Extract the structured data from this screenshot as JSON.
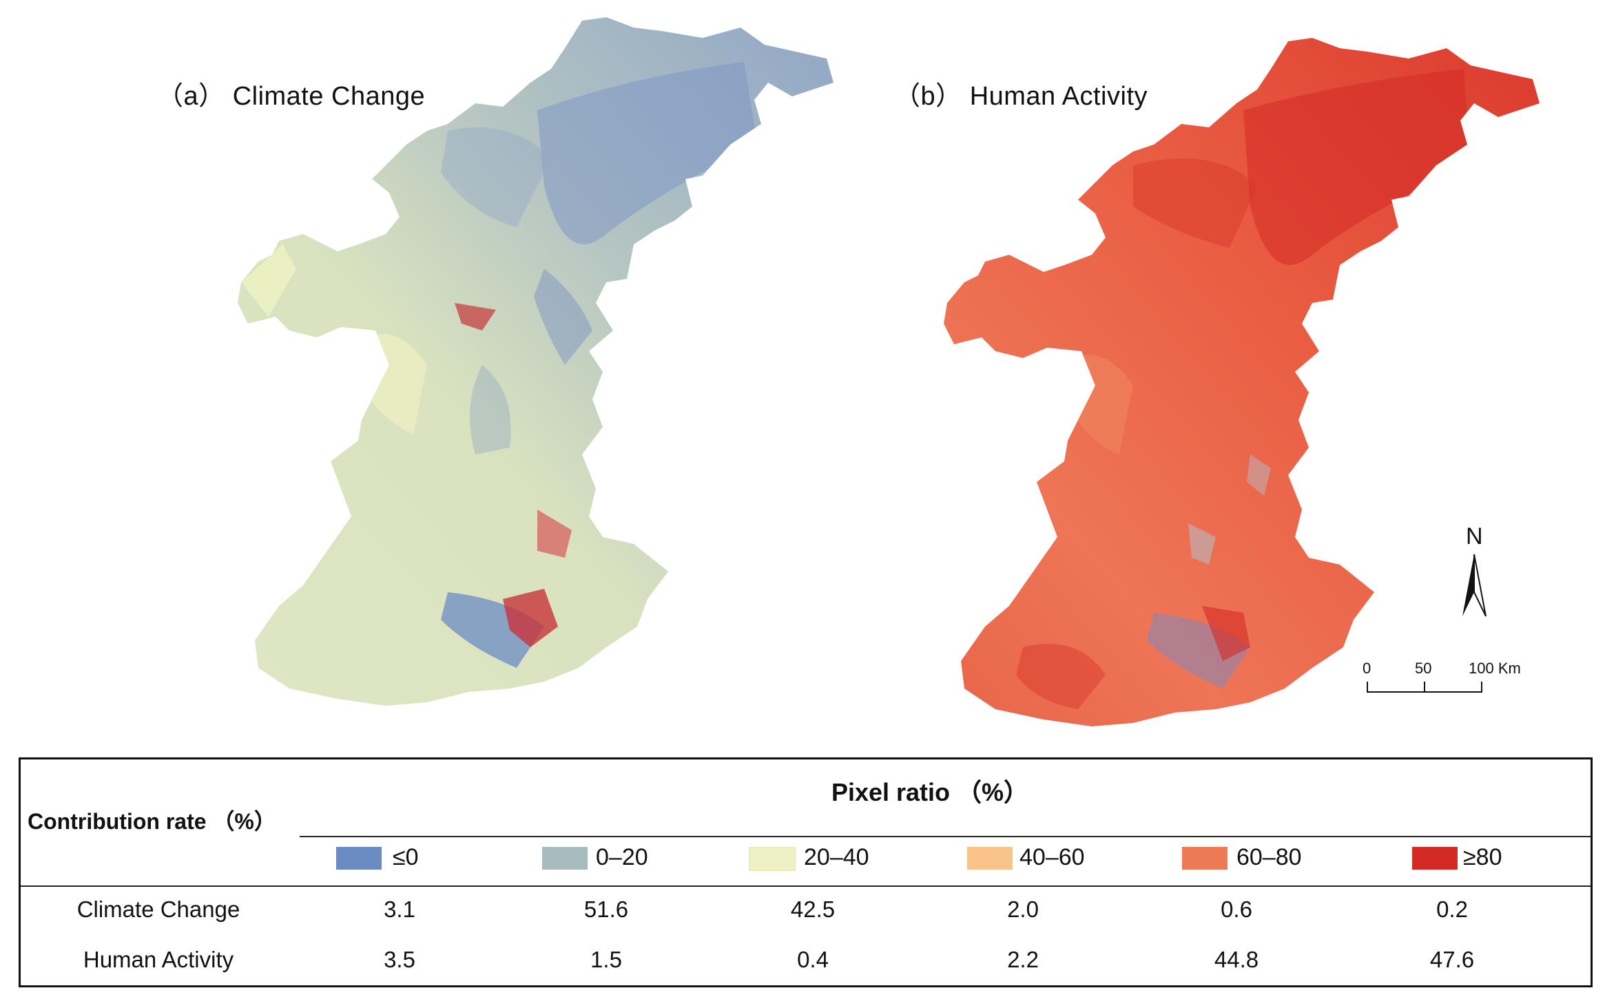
{
  "panels": {
    "a_title": "（a）  Climate Change",
    "b_title": "（b）  Human Activity"
  },
  "north_label": "N",
  "scale_bar": {
    "labels": [
      "0",
      "50",
      "100 Km"
    ]
  },
  "table": {
    "row_header": "Contribution rate （%）",
    "col_header": "Pixel ratio （%）",
    "classes": [
      {
        "label": "≤0",
        "color": "#6b8cc2"
      },
      {
        "label": "0–20",
        "color": "#a9bcbd"
      },
      {
        "label": "20–40",
        "color": "#eef2c2"
      },
      {
        "label": "40–60",
        "color": "#f9c48a"
      },
      {
        "label": "60–80",
        "color": "#ee7a55"
      },
      {
        "label": "≥80",
        "color": "#d42a24"
      }
    ],
    "rows": [
      {
        "label": "Climate Change",
        "values": [
          "3.1",
          "51.6",
          "42.5",
          "2.0",
          "0.6",
          "0.2"
        ]
      },
      {
        "label": "Human Activity",
        "values": [
          "3.5",
          "1.5",
          "0.4",
          "2.2",
          "44.8",
          "47.6"
        ]
      }
    ]
  }
}
